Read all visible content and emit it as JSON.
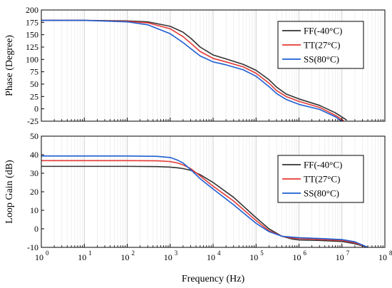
{
  "chart_data": [
    {
      "type": "line",
      "name": "phase-panel",
      "xscale": "log",
      "xlim": [
        1,
        100000000
      ],
      "ylim": [
        -25,
        200
      ],
      "yticks": [
        -25,
        0,
        25,
        50,
        75,
        100,
        125,
        150,
        175,
        200
      ],
      "ylabel": "Phase (Degree)",
      "xlabel": "",
      "grid": "vertical",
      "legend_position": "top-right",
      "series": [
        {
          "name": "FF(-40°C)",
          "color": "#333333",
          "x": [
            1,
            10,
            100,
            300,
            1000,
            2000,
            3000,
            5000,
            10000,
            20000,
            50000,
            100000,
            200000,
            300000,
            500000,
            1000000,
            3000000,
            7000000,
            13000000
          ],
          "y": [
            179,
            179,
            178,
            176,
            167,
            155,
            143,
            125,
            109,
            101,
            90,
            78,
            59,
            44,
            30,
            20,
            7,
            -8,
            -23
          ]
        },
        {
          "name": "TT(27°C)",
          "color": "#e53935",
          "x": [
            1,
            10,
            100,
            300,
            1000,
            2000,
            3000,
            5000,
            10000,
            20000,
            50000,
            100000,
            200000,
            300000,
            500000,
            1000000,
            3000000,
            7000000,
            11000000
          ],
          "y": [
            179,
            179,
            177,
            174,
            162,
            146,
            133,
            116,
            102,
            95,
            85,
            72,
            52,
            37,
            25,
            15,
            3,
            -13,
            -24
          ]
        },
        {
          "name": "SS(80°C)",
          "color": "#1e5fd2",
          "x": [
            1,
            10,
            100,
            300,
            1000,
            2000,
            3000,
            5000,
            10000,
            20000,
            50000,
            100000,
            200000,
            300000,
            500000,
            1000000,
            3000000,
            7000000,
            10000000
          ],
          "y": [
            179,
            179,
            176,
            170,
            152,
            134,
            122,
            107,
            95,
            89,
            79,
            66,
            45,
            31,
            19,
            9,
            -1,
            -16,
            -25
          ]
        }
      ]
    },
    {
      "type": "line",
      "name": "gain-panel",
      "xscale": "log",
      "xlim": [
        1,
        100000000
      ],
      "ylim": [
        -10,
        50
      ],
      "yticks": [
        -10,
        0,
        10,
        20,
        30,
        40,
        50
      ],
      "ylabel": "Loop Gain (dB)",
      "xlabel": "Frequency (Hz)",
      "grid": "vertical",
      "legend_position": "top-right",
      "series": [
        {
          "name": "FF(-40°C)",
          "color": "#333333",
          "x": [
            1,
            10,
            100,
            500,
            1000,
            1500,
            2000,
            3000,
            5000,
            10000,
            30000,
            100000,
            200000,
            400000,
            700000,
            1000000,
            3000000,
            10000000,
            20000000,
            40000000
          ],
          "y": [
            33.7,
            33.7,
            33.7,
            33.6,
            33.3,
            32.9,
            32.5,
            31.6,
            29.2,
            25,
            17,
            6,
            0,
            -4,
            -5.5,
            -6,
            -6.3,
            -6.8,
            -8,
            -10
          ]
        },
        {
          "name": "TT(27°C)",
          "color": "#e53935",
          "x": [
            1,
            10,
            100,
            500,
            1000,
            1500,
            2000,
            3000,
            5000,
            10000,
            30000,
            100000,
            200000,
            400000,
            700000,
            1000000,
            3000000,
            10000000,
            20000000,
            40000000
          ],
          "y": [
            36.8,
            36.8,
            36.8,
            36.7,
            36.3,
            35.5,
            34.5,
            32.5,
            28.5,
            23,
            15,
            4.5,
            -1,
            -4,
            -5,
            -5.2,
            -5.7,
            -6.3,
            -7.5,
            -10
          ]
        },
        {
          "name": "SS(80°C)",
          "color": "#1e5fd2",
          "x": [
            1,
            10,
            100,
            500,
            1000,
            1500,
            2000,
            3000,
            5000,
            10000,
            30000,
            100000,
            200000,
            400000,
            700000,
            1000000,
            3000000,
            10000000,
            20000000,
            40000000
          ],
          "y": [
            39.3,
            39.3,
            39.3,
            39.1,
            38.5,
            37,
            35.5,
            32,
            27,
            21.5,
            13,
            3,
            -1.5,
            -4,
            -4.5,
            -4.8,
            -5.2,
            -5.8,
            -7,
            -10
          ]
        }
      ]
    }
  ]
}
